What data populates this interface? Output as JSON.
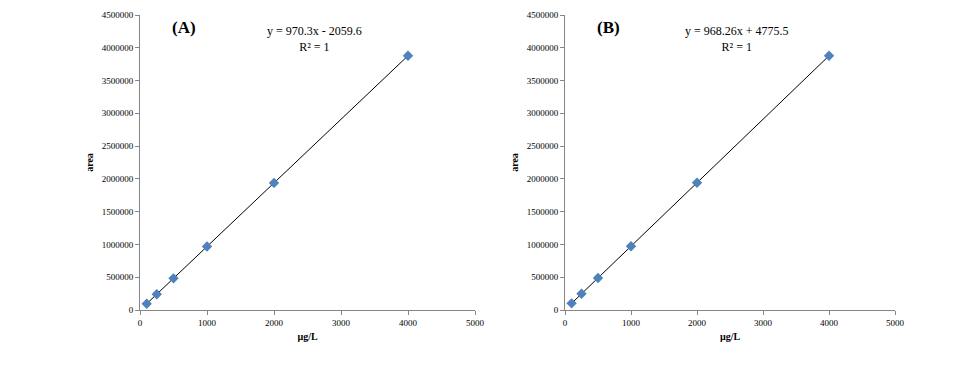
{
  "chart_data": [
    {
      "type": "scatter",
      "title": "(A)",
      "annotations": [
        "y = 970.3x - 2059.6",
        "R² = 1"
      ],
      "x_label": "µg/L",
      "y_label": "area",
      "x": [
        100,
        250,
        500,
        1000,
        2000,
        4000
      ],
      "values": [
        95000,
        240500,
        483000,
        968000,
        1938500,
        3879000
      ],
      "color": "#4f81bd",
      "marker": "diamond",
      "line_style": "solid",
      "xlim": [
        0,
        5000
      ],
      "xticks": [
        0,
        1000,
        2000,
        3000,
        4000,
        5000
      ],
      "ylim": [
        0,
        4500000
      ],
      "yticks": [
        0,
        500000,
        1000000,
        1500000,
        2000000,
        2500000,
        3000000,
        3500000,
        4000000,
        4500000
      ],
      "grid": false
    },
    {
      "type": "scatter",
      "title": "(B)",
      "annotations": [
        "y = 968.26x + 4775.5",
        "R² = 1"
      ],
      "x_label": "µg/L",
      "y_label": "area",
      "x": [
        100,
        250,
        500,
        1000,
        2000,
        4000
      ],
      "values": [
        101600,
        246800,
        488900,
        973000,
        1941300,
        3877800
      ],
      "color": "#4f81bd",
      "marker": "diamond",
      "line_style": "solid",
      "xlim": [
        0,
        5000
      ],
      "xticks": [
        0,
        1000,
        2000,
        3000,
        4000,
        5000
      ],
      "ylim": [
        0,
        4500000
      ],
      "yticks": [
        0,
        500000,
        1000000,
        1500000,
        2000000,
        2500000,
        3000000,
        3500000,
        4000000,
        4500000
      ],
      "grid": false
    }
  ]
}
